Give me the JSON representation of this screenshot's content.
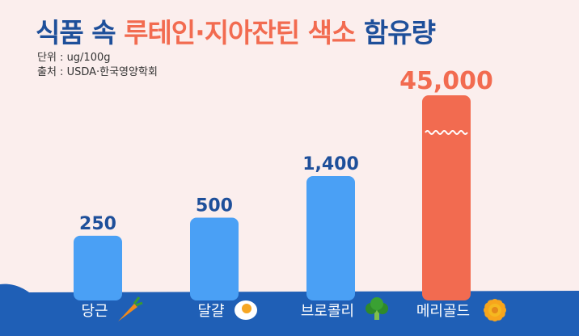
{
  "title": {
    "part1": "식품 속",
    "highlight": "루테인·지아잔틴 색소",
    "part2": "함유량"
  },
  "unit_text": "단위 : ug/100g",
  "source_text": "출처 : USDA·한국영양학회",
  "colors": {
    "title": "#1e4f9a",
    "highlight": "#f26b50",
    "bar_blue": "#4aa0f5",
    "bar_orange": "#f26b50",
    "value_blue": "#1e4f9a",
    "value_orange": "#f26b50",
    "band": "#1f5fb6",
    "background": "#fbeeed"
  },
  "chart_data": {
    "type": "bar",
    "title": "식품 속 루테인·지아잔틴 색소 함유량",
    "categories": [
      "당근",
      "달걀",
      "브로콜리",
      "메리골드"
    ],
    "values": [
      250,
      500,
      1400,
      45000
    ],
    "value_labels": [
      "250",
      "500",
      "1,400",
      "45,000"
    ],
    "icons": [
      "carrot-icon",
      "egg-icon",
      "broccoli-icon",
      "marigold-icon"
    ],
    "highlight_index": 3,
    "axis_break": "wavy break on tallest bar (not to scale)",
    "xlabel": "",
    "ylabel": "",
    "grid": false,
    "legend": "none"
  }
}
